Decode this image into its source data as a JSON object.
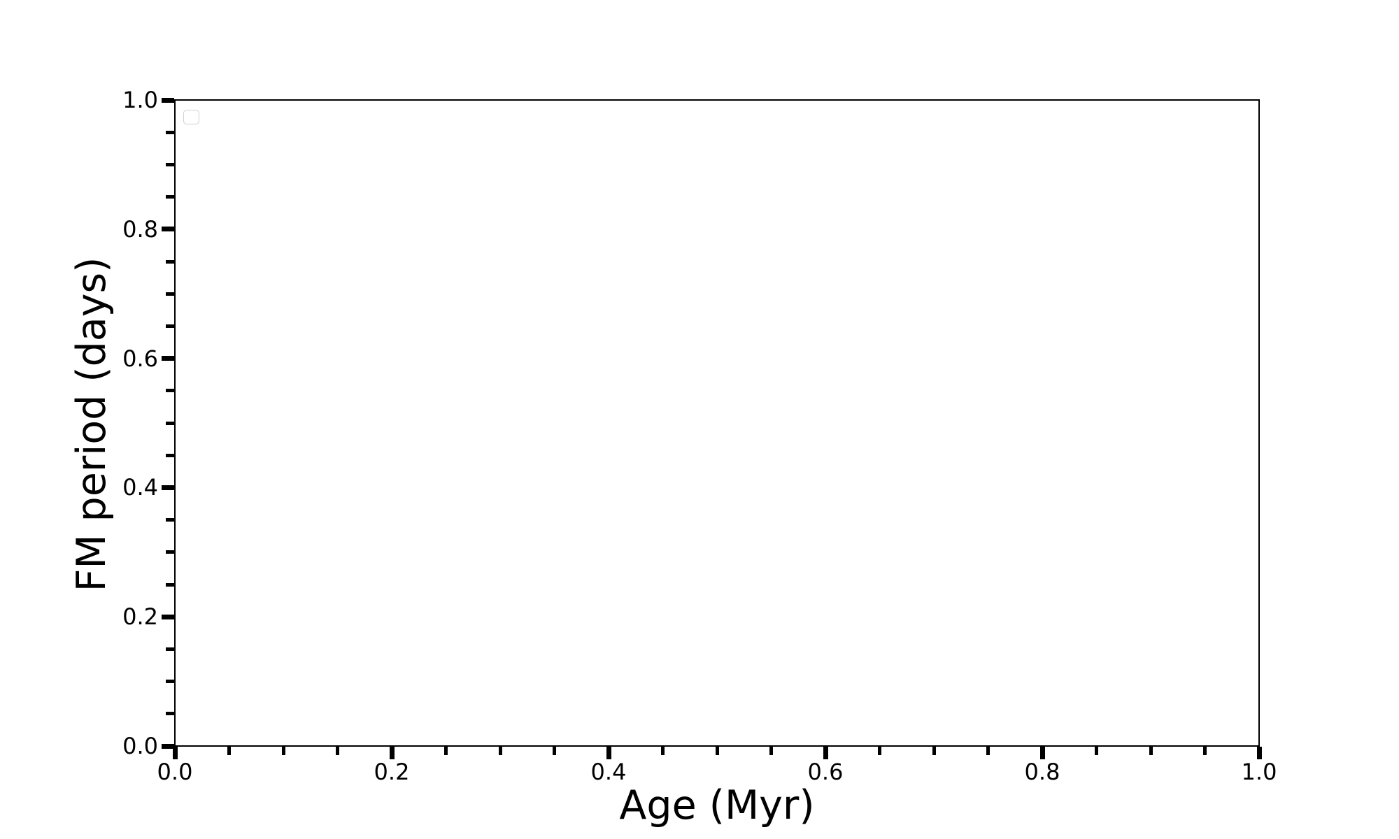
{
  "chart_data": {
    "type": "scatter",
    "title": "",
    "xlabel": "Age (Myr)",
    "ylabel": "FM period (days)",
    "xlim": [
      0.0,
      1.0
    ],
    "ylim": [
      0.0,
      1.0
    ],
    "x_ticks": [
      "0.0",
      "0.2",
      "0.4",
      "0.6",
      "0.8",
      "1.0"
    ],
    "y_ticks": [
      "1.0",
      "0.8",
      "0.6",
      "0.4",
      "0.2",
      "0.0"
    ],
    "minor_ticks_per_interval": 3,
    "tick_direction": "out",
    "grid": false,
    "series": [],
    "legend": {
      "visible": true,
      "entries": [],
      "position": "upper left",
      "border_color": "#d0d0d0"
    },
    "background_color": "#ffffff",
    "axis_color": "#000000"
  }
}
